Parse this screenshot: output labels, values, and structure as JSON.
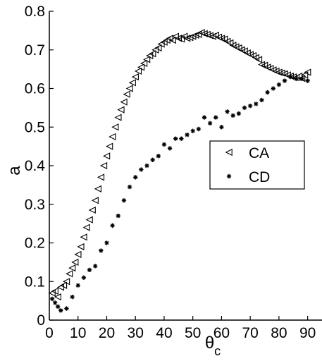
{
  "chart_data": {
    "type": "scatter",
    "title": "",
    "xlabel": "θ",
    "xlabel_subscript": "c",
    "ylabel": "a",
    "xlim": [
      0,
      95
    ],
    "ylim": [
      0,
      0.8
    ],
    "xticks": [
      "0",
      "10",
      "20",
      "30",
      "40",
      "50",
      "60",
      "70",
      "80",
      "90"
    ],
    "yticks": [
      "0",
      "0.1",
      "0.2",
      "0.3",
      "0.4",
      "0.5",
      "0.6",
      "0.7",
      "0.8"
    ],
    "legend_position": "right",
    "grid": false,
    "series": [
      {
        "name": "CA",
        "marker": "triangle-left",
        "points": [
          [
            1,
            0.07
          ],
          [
            2,
            0.075
          ],
          [
            3,
            0.06
          ],
          [
            4,
            0.085
          ],
          [
            5,
            0.09
          ],
          [
            6,
            0.1
          ],
          [
            7,
            0.12
          ],
          [
            8,
            0.135
          ],
          [
            9,
            0.15
          ],
          [
            10,
            0.17
          ],
          [
            11,
            0.19
          ],
          [
            12,
            0.215
          ],
          [
            13,
            0.24
          ],
          [
            14,
            0.26
          ],
          [
            15,
            0.285
          ],
          [
            16,
            0.31
          ],
          [
            17,
            0.34
          ],
          [
            18,
            0.37
          ],
          [
            19,
            0.4
          ],
          [
            20,
            0.425
          ],
          [
            21,
            0.45
          ],
          [
            22,
            0.475
          ],
          [
            23,
            0.5
          ],
          [
            24,
            0.525
          ],
          [
            25,
            0.545
          ],
          [
            26,
            0.565
          ],
          [
            27,
            0.585
          ],
          [
            28,
            0.6
          ],
          [
            29,
            0.615
          ],
          [
            30,
            0.63
          ],
          [
            31,
            0.645
          ],
          [
            32,
            0.655
          ],
          [
            33,
            0.665
          ],
          [
            34,
            0.675
          ],
          [
            35,
            0.685
          ],
          [
            36,
            0.69
          ],
          [
            37,
            0.7
          ],
          [
            38,
            0.705
          ],
          [
            39,
            0.715
          ],
          [
            40,
            0.72
          ],
          [
            41,
            0.725
          ],
          [
            42,
            0.73
          ],
          [
            43,
            0.725
          ],
          [
            44,
            0.735
          ],
          [
            45,
            0.73
          ],
          [
            46,
            0.728
          ],
          [
            47,
            0.735
          ],
          [
            48,
            0.73
          ],
          [
            49,
            0.732
          ],
          [
            50,
            0.735
          ],
          [
            51,
            0.738
          ],
          [
            52,
            0.74
          ],
          [
            53,
            0.745
          ],
          [
            54,
            0.742
          ],
          [
            55,
            0.74
          ],
          [
            56,
            0.737
          ],
          [
            57,
            0.735
          ],
          [
            58,
            0.738
          ],
          [
            59,
            0.733
          ],
          [
            60,
            0.73
          ],
          [
            61,
            0.728
          ],
          [
            62,
            0.722
          ],
          [
            63,
            0.718
          ],
          [
            64,
            0.712
          ],
          [
            65,
            0.708
          ],
          [
            66,
            0.705
          ],
          [
            67,
            0.7
          ],
          [
            68,
            0.697
          ],
          [
            69,
            0.692
          ],
          [
            70,
            0.688
          ],
          [
            71,
            0.685
          ],
          [
            72,
            0.68
          ],
          [
            73,
            0.675
          ],
          [
            74,
            0.662
          ],
          [
            75,
            0.66
          ],
          [
            76,
            0.655
          ],
          [
            77,
            0.652
          ],
          [
            78,
            0.648
          ],
          [
            79,
            0.645
          ],
          [
            80,
            0.642
          ],
          [
            81,
            0.64
          ],
          [
            82,
            0.638
          ],
          [
            83,
            0.635
          ],
          [
            84,
            0.632
          ],
          [
            85,
            0.63
          ],
          [
            86,
            0.628
          ],
          [
            87,
            0.632
          ],
          [
            88,
            0.626
          ],
          [
            89,
            0.635
          ],
          [
            90,
            0.642
          ]
        ]
      },
      {
        "name": "CD",
        "marker": "asterisk",
        "points": [
          [
            1,
            0.055
          ],
          [
            2,
            0.045
          ],
          [
            3,
            0.035
          ],
          [
            4,
            0.025
          ],
          [
            6,
            0.03
          ],
          [
            8,
            0.06
          ],
          [
            10,
            0.09
          ],
          [
            12,
            0.11
          ],
          [
            14,
            0.13
          ],
          [
            16,
            0.14
          ],
          [
            18,
            0.18
          ],
          [
            20,
            0.2
          ],
          [
            22,
            0.245
          ],
          [
            24,
            0.27
          ],
          [
            26,
            0.31
          ],
          [
            28,
            0.345
          ],
          [
            30,
            0.37
          ],
          [
            32,
            0.39
          ],
          [
            34,
            0.4
          ],
          [
            36,
            0.415
          ],
          [
            38,
            0.425
          ],
          [
            40,
            0.455
          ],
          [
            42,
            0.445
          ],
          [
            44,
            0.47
          ],
          [
            46,
            0.47
          ],
          [
            48,
            0.48
          ],
          [
            50,
            0.49
          ],
          [
            52,
            0.495
          ],
          [
            54,
            0.525
          ],
          [
            56,
            0.51
          ],
          [
            58,
            0.525
          ],
          [
            60,
            0.5
          ],
          [
            62,
            0.54
          ],
          [
            64,
            0.53
          ],
          [
            66,
            0.535
          ],
          [
            68,
            0.55
          ],
          [
            70,
            0.555
          ],
          [
            72,
            0.56
          ],
          [
            74,
            0.57
          ],
          [
            76,
            0.59
          ],
          [
            78,
            0.6
          ],
          [
            80,
            0.61
          ],
          [
            82,
            0.62
          ],
          [
            84,
            0.63
          ],
          [
            86,
            0.625
          ],
          [
            88,
            0.625
          ],
          [
            90,
            0.62
          ]
        ]
      }
    ]
  }
}
